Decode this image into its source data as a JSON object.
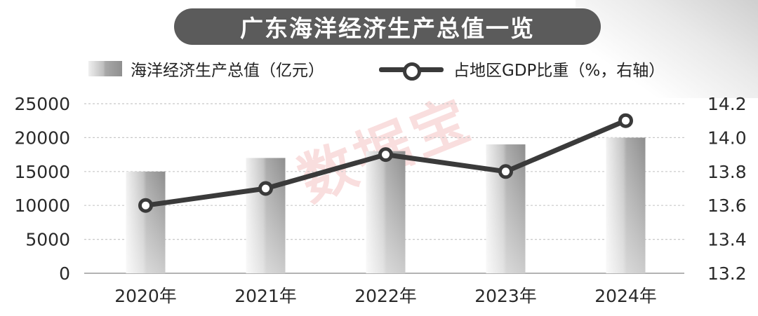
{
  "chart_data": {
    "type": "bar",
    "title": "广东海洋经济生产总值一览",
    "categories": [
      "2020年",
      "2021年",
      "2022年",
      "2023年",
      "2024年"
    ],
    "series": [
      {
        "name": "海洋经济生产总值（亿元）",
        "type": "bar",
        "axis": "left",
        "values": [
          15000,
          17000,
          18000,
          19000,
          20000
        ]
      },
      {
        "name": "占地区GDP比重（%，右轴）",
        "type": "line",
        "axis": "right",
        "values": [
          13.6,
          13.7,
          13.9,
          13.8,
          14.1
        ]
      }
    ],
    "y_left": {
      "min": 0,
      "max": 25000,
      "ticks": [
        "25000",
        "20000",
        "15000",
        "10000",
        "5000",
        "0"
      ]
    },
    "y_right": {
      "min": 13.2,
      "max": 14.2,
      "ticks": [
        "14.2",
        "14.0",
        "13.8",
        "13.6",
        "13.4",
        "13.2"
      ]
    },
    "grid": true,
    "legend_position": "top",
    "colors": {
      "bar": "#a6a6a6",
      "line": "#3a3a3a",
      "title_bg": "#5b5b5b"
    }
  },
  "watermark": "数据宝"
}
